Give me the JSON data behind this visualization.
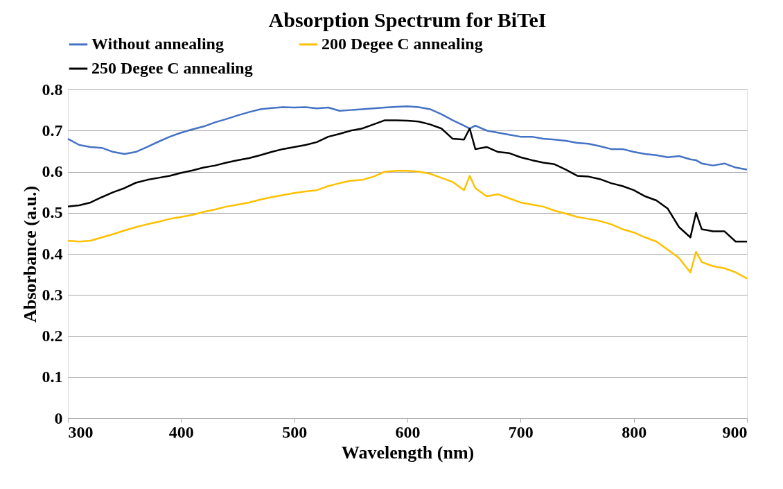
{
  "chart_data": {
    "type": "line",
    "title": "Absorption Spectrum for BiTeI",
    "xlabel": "Wavelength (nm)",
    "ylabel": "Absorbance (a.u.)",
    "x": [
      300,
      310,
      320,
      330,
      340,
      350,
      360,
      370,
      380,
      390,
      400,
      410,
      420,
      430,
      440,
      450,
      460,
      470,
      480,
      490,
      500,
      510,
      520,
      530,
      540,
      550,
      560,
      570,
      580,
      590,
      600,
      610,
      620,
      630,
      640,
      650,
      655,
      660,
      670,
      680,
      690,
      700,
      710,
      720,
      730,
      740,
      750,
      760,
      770,
      780,
      790,
      800,
      810,
      820,
      830,
      840,
      850,
      855,
      860,
      870,
      880,
      890,
      900
    ],
    "series": [
      {
        "name": "Without annealing",
        "color": "#4472c4",
        "values": [
          0.68,
          0.665,
          0.66,
          0.658,
          0.648,
          0.643,
          0.648,
          0.66,
          0.673,
          0.685,
          0.695,
          0.703,
          0.71,
          0.72,
          0.728,
          0.737,
          0.745,
          0.752,
          0.755,
          0.757,
          0.756,
          0.757,
          0.754,
          0.756,
          0.748,
          0.75,
          0.752,
          0.754,
          0.756,
          0.758,
          0.759,
          0.757,
          0.752,
          0.74,
          0.725,
          0.712,
          0.705,
          0.712,
          0.7,
          0.695,
          0.69,
          0.685,
          0.685,
          0.68,
          0.678,
          0.675,
          0.67,
          0.668,
          0.662,
          0.655,
          0.655,
          0.648,
          0.643,
          0.64,
          0.635,
          0.638,
          0.63,
          0.628,
          0.62,
          0.615,
          0.62,
          0.61,
          0.605
        ]
      },
      {
        "name": "200 Degee C annealing",
        "color": "#ffc000",
        "values": [
          0.432,
          0.43,
          0.432,
          0.44,
          0.448,
          0.457,
          0.465,
          0.472,
          0.478,
          0.485,
          0.49,
          0.495,
          0.502,
          0.508,
          0.515,
          0.52,
          0.525,
          0.532,
          0.538,
          0.543,
          0.548,
          0.552,
          0.555,
          0.565,
          0.572,
          0.578,
          0.58,
          0.588,
          0.6,
          0.602,
          0.602,
          0.6,
          0.595,
          0.585,
          0.575,
          0.555,
          0.59,
          0.56,
          0.54,
          0.545,
          0.535,
          0.525,
          0.52,
          0.515,
          0.505,
          0.498,
          0.49,
          0.485,
          0.48,
          0.472,
          0.46,
          0.452,
          0.44,
          0.43,
          0.41,
          0.39,
          0.355,
          0.405,
          0.38,
          0.37,
          0.365,
          0.355,
          0.34
        ]
      },
      {
        "name": "250 Degee C annealing",
        "color": "#000000",
        "values": [
          0.515,
          0.518,
          0.525,
          0.538,
          0.55,
          0.56,
          0.573,
          0.58,
          0.585,
          0.59,
          0.597,
          0.603,
          0.61,
          0.615,
          0.622,
          0.628,
          0.633,
          0.64,
          0.648,
          0.655,
          0.66,
          0.665,
          0.672,
          0.685,
          0.692,
          0.7,
          0.705,
          0.715,
          0.725,
          0.725,
          0.724,
          0.722,
          0.715,
          0.705,
          0.68,
          0.678,
          0.705,
          0.655,
          0.66,
          0.648,
          0.645,
          0.635,
          0.628,
          0.622,
          0.618,
          0.605,
          0.59,
          0.588,
          0.582,
          0.572,
          0.565,
          0.555,
          0.54,
          0.53,
          0.51,
          0.465,
          0.44,
          0.5,
          0.46,
          0.455,
          0.455,
          0.43,
          0.43
        ]
      }
    ],
    "xlim": [
      300,
      900
    ],
    "xticks": [
      300,
      400,
      500,
      600,
      700,
      800,
      900
    ],
    "ylim": [
      0,
      0.8
    ],
    "yticks": [
      0,
      0.1,
      0.2,
      0.3,
      0.4,
      0.5,
      0.6,
      0.7,
      0.8
    ],
    "grid": "y",
    "legend": "top",
    "marker": "none",
    "line_style": "solid"
  }
}
